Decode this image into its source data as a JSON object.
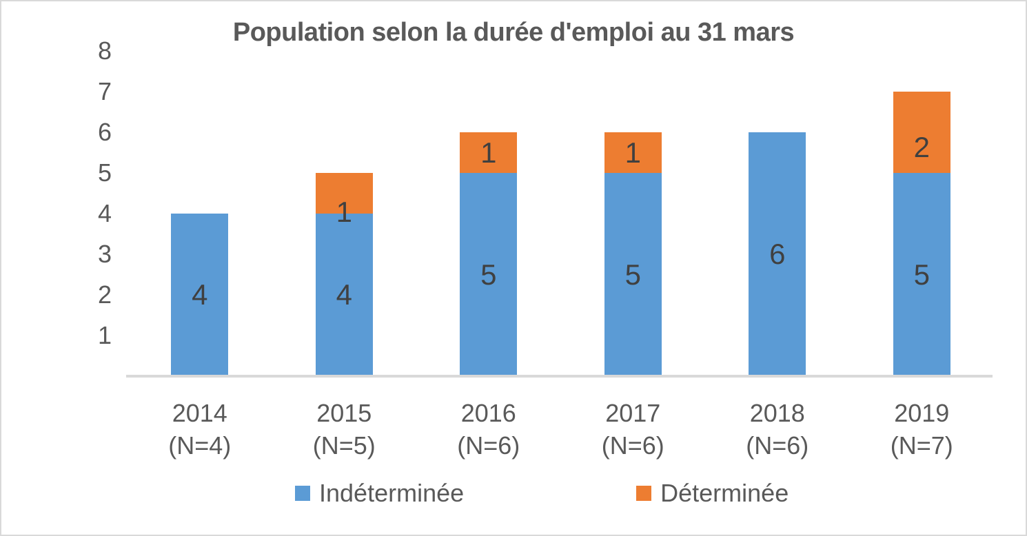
{
  "chart_data": {
    "type": "bar",
    "stacked": true,
    "title": "Population selon la durée d'emploi au 31 mars",
    "categories": [
      "2014",
      "2015",
      "2016",
      "2017",
      "2018",
      "2019"
    ],
    "category_sublabels": [
      "(N=4)",
      "(N=5)",
      "(N=6)",
      "(N=6)",
      "(N=6)",
      "(N=7)"
    ],
    "series": [
      {
        "name": "Indéterminée",
        "color": "#5B9BD5",
        "values": [
          4,
          4,
          5,
          5,
          6,
          5
        ]
      },
      {
        "name": "Déterminée",
        "color": "#ED7D31",
        "values": [
          0,
          1,
          1,
          1,
          0,
          2
        ]
      }
    ],
    "stack_totals": [
      4,
      5,
      6,
      6,
      6,
      7
    ],
    "ylim": [
      0,
      8
    ],
    "yticks": [
      1,
      2,
      3,
      4,
      5,
      6,
      7,
      8
    ],
    "grid": false,
    "data_labels": "segment values shown inside segments, hidden when 0",
    "legend_position": "bottom"
  },
  "colors": {
    "series_blue": "#5B9BD5",
    "series_orange": "#ED7D31",
    "axis_text": "#595959",
    "title_text": "#595959",
    "data_label_text": "#404040",
    "axis_line": "#D9D9D9",
    "frame_border": "#D9D9D9",
    "background": "#FFFFFF"
  }
}
